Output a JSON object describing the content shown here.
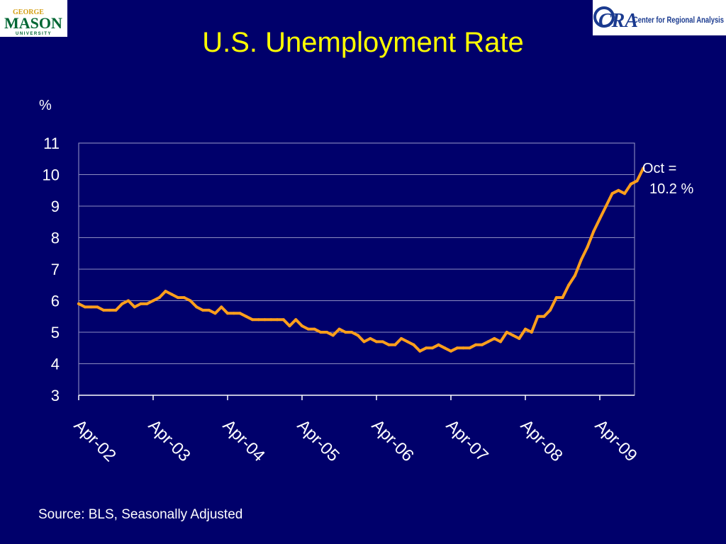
{
  "title": "U.S. Unemployment Rate",
  "logos": {
    "left_top": "GEORGE",
    "left_main": "MASON",
    "left_bottom": "UNIVERSITY",
    "right_text": "Center for Regional Analysis",
    "right_mark": "CRA"
  },
  "source": "Source: BLS, Seasonally Adjusted",
  "annotation": {
    "line1": "Oct =",
    "line2": "10.2 %"
  },
  "colors": {
    "background": "#00006b",
    "title": "#ffff00",
    "line": "#ff9f1c",
    "text": "#ffffff"
  },
  "chart_data": {
    "type": "line",
    "title": "U.S. Unemployment Rate",
    "ylabel": "%",
    "xlabel": "",
    "ylim": [
      3,
      11
    ],
    "yticks": [
      3,
      4,
      5,
      6,
      7,
      8,
      9,
      10,
      11
    ],
    "xtick_labels": [
      "Apr-02",
      "Apr-03",
      "Apr-04",
      "Apr-05",
      "Apr-06",
      "Apr-07",
      "Apr-08",
      "Apr-09"
    ],
    "grid": true,
    "x_start": "Apr-02",
    "x_end": "Oct-09",
    "values": [
      5.9,
      5.8,
      5.8,
      5.8,
      5.7,
      5.7,
      5.7,
      5.9,
      6.0,
      5.8,
      5.9,
      5.9,
      6.0,
      6.1,
      6.3,
      6.2,
      6.1,
      6.1,
      6.0,
      5.8,
      5.7,
      5.7,
      5.6,
      5.8,
      5.6,
      5.6,
      5.6,
      5.5,
      5.4,
      5.4,
      5.4,
      5.4,
      5.4,
      5.4,
      5.2,
      5.4,
      5.2,
      5.1,
      5.1,
      5.0,
      5.0,
      4.9,
      5.1,
      5.0,
      5.0,
      4.9,
      4.7,
      4.8,
      4.7,
      4.7,
      4.6,
      4.6,
      4.8,
      4.7,
      4.6,
      4.4,
      4.5,
      4.5,
      4.6,
      4.5,
      4.4,
      4.5,
      4.5,
      4.5,
      4.6,
      4.6,
      4.7,
      4.8,
      4.7,
      5.0,
      4.9,
      4.8,
      5.1,
      5.0,
      5.5,
      5.5,
      5.7,
      6.1,
      6.1,
      6.5,
      6.8,
      7.3,
      7.7,
      8.2,
      8.6,
      9.0,
      9.4,
      9.5,
      9.4,
      9.7,
      9.8,
      10.2
    ]
  }
}
